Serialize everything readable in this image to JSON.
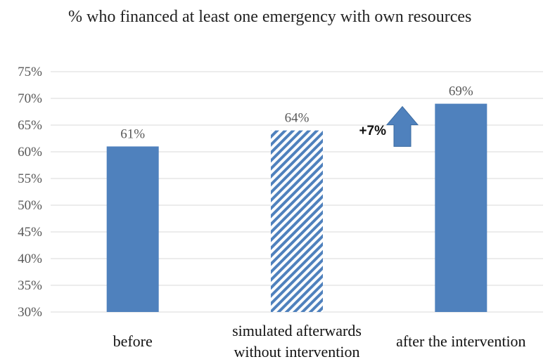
{
  "chart_data": {
    "type": "bar",
    "title": "% who financed at least one emergency with own resources",
    "categories": [
      [
        "before"
      ],
      [
        "simulated afterwards",
        "without intervention"
      ],
      [
        "after the intervention"
      ]
    ],
    "values": [
      61,
      64,
      69
    ],
    "data_labels": [
      "61%",
      "64%",
      "69%"
    ],
    "bar_styles": [
      "solid",
      "hatched",
      "solid"
    ],
    "ylim": [
      30,
      75
    ],
    "yticks": [
      30,
      35,
      40,
      45,
      50,
      55,
      60,
      65,
      70,
      75
    ],
    "ytick_labels": [
      "30%",
      "35%",
      "40%",
      "45%",
      "50%",
      "55%",
      "60%",
      "65%",
      "70%",
      "75%"
    ],
    "grid": true,
    "annotation": {
      "text": "+7%",
      "arrow": "up"
    },
    "colors": {
      "bar": "#4f81bd",
      "grid": "#d9d9d9",
      "text": "#595959"
    }
  }
}
